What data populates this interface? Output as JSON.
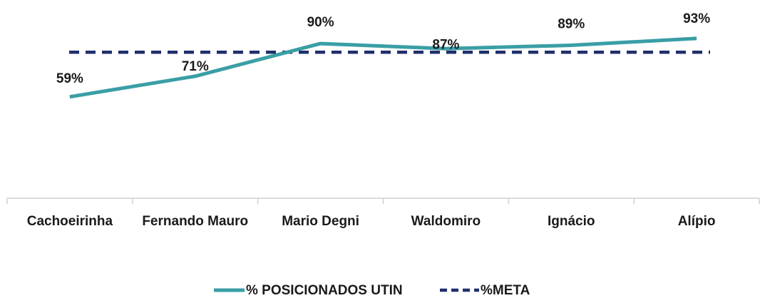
{
  "chart_data": {
    "type": "line",
    "categories": [
      "Cachoeirinha",
      "Fernando Mauro",
      "Mario Degni",
      "Waldomiro",
      "Ignácio",
      "Alípio"
    ],
    "series": [
      {
        "name": "% POSICIONADOS UTIN",
        "values": [
          59,
          71,
          90,
          87,
          89,
          93
        ],
        "data_labels": [
          "59%",
          "71%",
          "90%",
          "87%",
          "89%",
          "93%"
        ],
        "color": "#3a9ea5",
        "style": "solid"
      },
      {
        "name": "%META",
        "values": [
          85,
          85,
          85,
          85,
          85,
          85
        ],
        "color": "#1f2f6b",
        "style": "dashed"
      }
    ],
    "ylim": [
      0,
      100
    ],
    "grid": false,
    "legend_position": "bottom"
  }
}
